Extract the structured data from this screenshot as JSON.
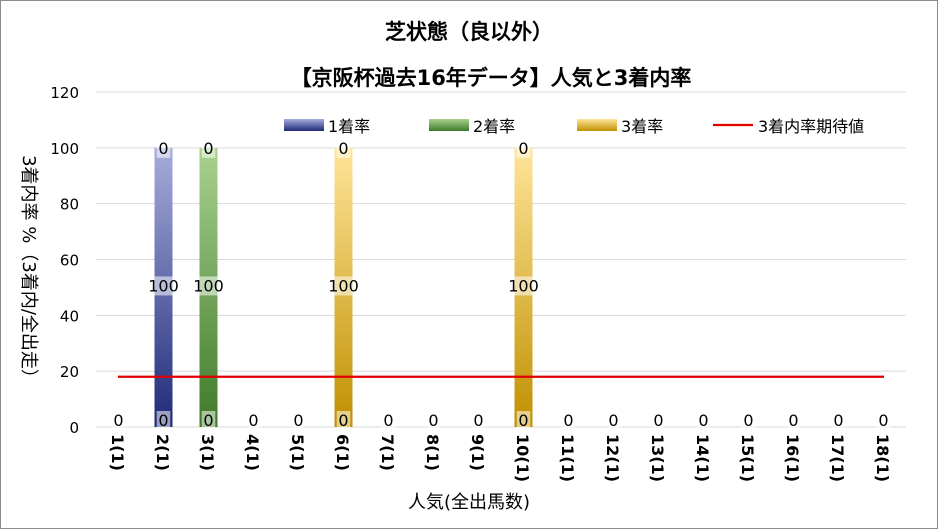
{
  "chart_data": {
    "type": "bar",
    "title": "芝状態（良以外）",
    "subtitle": "【京阪杯過去16年データ】人気と3着内率",
    "xlabel": "人気(全出馬数)",
    "ylabel": "3着内率 %（3着内/全出走）",
    "ylim": [
      0,
      120
    ],
    "yticks": [
      0,
      20,
      40,
      60,
      80,
      100,
      120
    ],
    "grid": true,
    "legend_position": "top",
    "categories": [
      "1(1)",
      "2(1)",
      "3(1)",
      "4(1)",
      "5(1)",
      "6(1)",
      "7(1)",
      "8(1)",
      "9(1)",
      "10(1)",
      "11(1)",
      "12(1)",
      "13(1)",
      "14(1)",
      "15(1)",
      "16(1)",
      "17(1)",
      "18(1)"
    ],
    "series": [
      {
        "name": "1着率",
        "color": "#2e3a87",
        "values": [
          0,
          100,
          0,
          0,
          0,
          0,
          0,
          0,
          0,
          0,
          0,
          0,
          0,
          0,
          0,
          0,
          0,
          0
        ]
      },
      {
        "name": "2着率",
        "color": "#4e8a35",
        "values": [
          0,
          0,
          100,
          0,
          0,
          0,
          0,
          0,
          0,
          0,
          0,
          0,
          0,
          0,
          0,
          0,
          0,
          0
        ]
      },
      {
        "name": "3着率",
        "color": "#c8960a",
        "values": [
          0,
          0,
          0,
          0,
          0,
          100,
          0,
          0,
          0,
          100,
          0,
          0,
          0,
          0,
          0,
          0,
          0,
          0
        ]
      }
    ],
    "bar_top_labels": [
      "",
      "0",
      "0",
      "",
      "",
      "0",
      "",
      "",
      "",
      "0",
      "",
      "",
      "",
      "",
      "",
      "",
      "",
      ""
    ],
    "bar_mid_labels": [
      "",
      "100",
      "100",
      "",
      "",
      "100",
      "",
      "",
      "",
      "100",
      "",
      "",
      "",
      "",
      "",
      "",
      "",
      ""
    ],
    "bar_bottom_labels": [
      "0",
      "0",
      "0",
      "0",
      "0",
      "0",
      "0",
      "0",
      "0",
      "0",
      "0",
      "0",
      "0",
      "0",
      "0",
      "0",
      "0",
      "0"
    ],
    "reference_line": {
      "name": "3着内率期待値",
      "color": "#e00000",
      "value": 18
    }
  }
}
